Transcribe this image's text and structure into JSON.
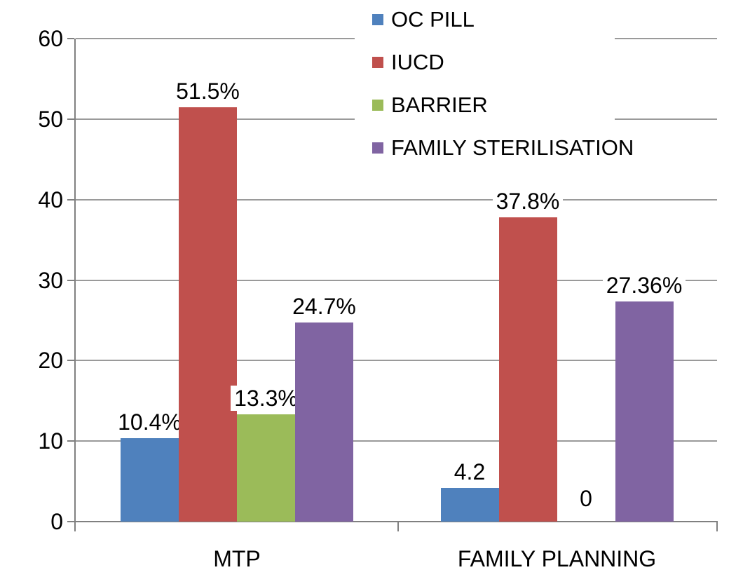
{
  "chart_data": {
    "type": "bar",
    "title": "",
    "categories": [
      "MTP",
      "FAMILY PLANNING"
    ],
    "series": [
      {
        "name": "OC PILL",
        "color": "#4F81BD",
        "values": [
          10.4,
          4.2
        ],
        "labels": [
          "10.4%",
          "4.2"
        ]
      },
      {
        "name": "IUCD",
        "color": "#C0504D",
        "values": [
          51.5,
          37.8
        ],
        "labels": [
          "51.5%",
          "37.8%"
        ]
      },
      {
        "name": "BARRIER",
        "color": "#9BBB59",
        "values": [
          13.3,
          0
        ],
        "labels": [
          "13.3%",
          "0"
        ]
      },
      {
        "name": "FAMILY STERILISATION",
        "color": "#8064A2",
        "values": [
          24.7,
          27.36
        ],
        "labels": [
          "24.7%",
          "27.36%"
        ]
      }
    ],
    "ylim": [
      0,
      60
    ],
    "yticks": [
      0,
      10,
      20,
      30,
      40,
      50,
      60
    ],
    "xlabel": "",
    "ylabel": "",
    "grid": "horizontal",
    "legend_position": "top-center, vertical list",
    "grid_color": "#9a9a9a",
    "axis_color": "#808080",
    "text_color": "#000000",
    "background_color": "#ffffff"
  }
}
